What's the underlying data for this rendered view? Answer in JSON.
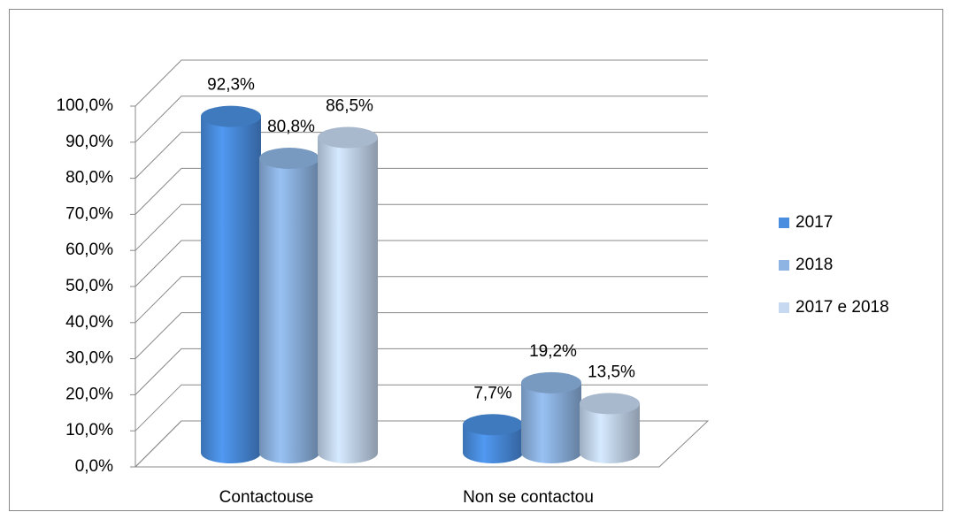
{
  "chart_data": {
    "type": "bar3d",
    "categories": [
      "Contactouse",
      "Non se contactou"
    ],
    "series": [
      {
        "name": "2017",
        "color": "#4a8ee0",
        "values": [
          92.3,
          7.7
        ],
        "value_labels": [
          "92,3%",
          "7,7%"
        ]
      },
      {
        "name": "2018",
        "color": "#8db4e2",
        "values": [
          80.8,
          19.2
        ],
        "value_labels": [
          "80,8%",
          "19,2%"
        ]
      },
      {
        "name": "2017 e 2018",
        "color": "#c6d9f1",
        "values": [
          86.5,
          13.5
        ],
        "value_labels": [
          "86,5%",
          "13,5%"
        ]
      }
    ],
    "ylim": [
      0,
      100
    ],
    "yticks": [
      {
        "value": 0,
        "label": "0,0%"
      },
      {
        "value": 10,
        "label": "10,0%"
      },
      {
        "value": 20,
        "label": "20,0%"
      },
      {
        "value": 30,
        "label": "30,0%"
      },
      {
        "value": 40,
        "label": "40,0%"
      },
      {
        "value": 50,
        "label": "50,0%"
      },
      {
        "value": 60,
        "label": "60,0%"
      },
      {
        "value": 70,
        "label": "70,0%"
      },
      {
        "value": 80,
        "label": "80,0%"
      },
      {
        "value": 90,
        "label": "90,0%"
      },
      {
        "value": 100,
        "label": "100,0%"
      }
    ],
    "grid": true,
    "legend": "right"
  }
}
